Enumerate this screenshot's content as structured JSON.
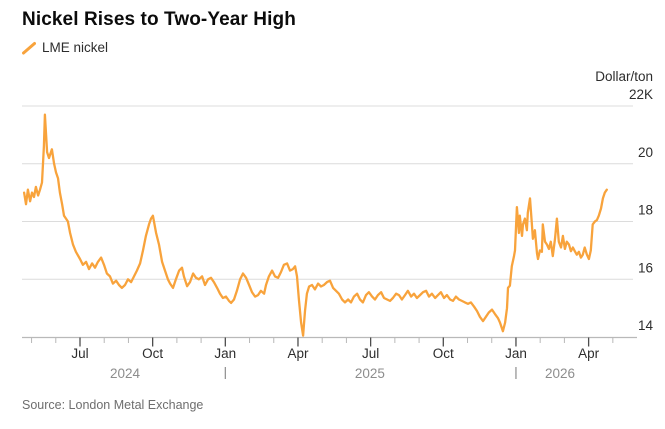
{
  "header": {
    "title": "Nickel Rises to Two-Year High"
  },
  "legend": {
    "label": "LME nickel",
    "color": "#F8A33C"
  },
  "footer": {
    "source": "Source: London Metal Exchange"
  },
  "colors": {
    "line": "#F8A33C",
    "gridline": "#dcdcdc",
    "axis_line": "#b9b9b9",
    "tick_major": "#4d4d4d",
    "tick_minor": "#b8b8b8",
    "axis_text": "#2d2d2d",
    "year_text": "#8d8d8d"
  },
  "chart_data": {
    "type": "line",
    "title": "Nickel Rises to Two-Year High",
    "series_name": "LME nickel",
    "unit_label": "Dollar/ton",
    "ylabel": "Dollar/ton",
    "xlabel": "",
    "grid": "horizontal",
    "legend_position": "top-left",
    "ylim": [
      13.95,
      22.3
    ],
    "x_months_since_2024_05": [
      -0.4,
      25.0
    ],
    "y_ticks": [
      {
        "label": "22K",
        "value": 22
      },
      {
        "label": "20",
        "value": 20
      },
      {
        "label": "18",
        "value": 18
      },
      {
        "label": "16",
        "value": 16
      },
      {
        "label": "14",
        "value": 14
      }
    ],
    "x_major_ticks": [
      {
        "label": "Jul",
        "t": 2
      },
      {
        "label": "Oct",
        "t": 5
      },
      {
        "label": "Jan",
        "t": 8
      },
      {
        "label": "Apr",
        "t": 11
      },
      {
        "label": "Jul",
        "t": 14
      },
      {
        "label": "Oct",
        "t": 17
      },
      {
        "label": "Jan",
        "t": 20
      },
      {
        "label": "Apr",
        "t": 23
      }
    ],
    "x_minor_ticks_t": [
      0,
      1,
      3,
      4,
      6,
      7,
      9,
      10,
      12,
      13,
      15,
      16,
      18,
      19,
      21,
      22,
      24
    ],
    "year_labels": [
      {
        "label": "2024",
        "t_center": 3.86
      },
      {
        "label": "2025",
        "t_center": 13.97
      },
      {
        "label": "2026",
        "t_center": 21.82
      }
    ],
    "year_dividers_t": [
      8,
      20
    ],
    "points": [
      [
        -0.31,
        19.0
      ],
      [
        -0.23,
        18.6
      ],
      [
        -0.15,
        19.1
      ],
      [
        -0.06,
        18.7
      ],
      [
        0.02,
        19.0
      ],
      [
        0.1,
        18.85
      ],
      [
        0.18,
        19.2
      ],
      [
        0.27,
        18.9
      ],
      [
        0.35,
        19.1
      ],
      [
        0.43,
        19.35
      ],
      [
        0.51,
        20.6
      ],
      [
        0.55,
        21.7
      ],
      [
        0.6,
        21.0
      ],
      [
        0.64,
        20.4
      ],
      [
        0.72,
        20.2
      ],
      [
        0.84,
        20.5
      ],
      [
        0.93,
        20.0
      ],
      [
        1.01,
        19.7
      ],
      [
        1.09,
        19.5
      ],
      [
        1.17,
        19.0
      ],
      [
        1.26,
        18.6
      ],
      [
        1.34,
        18.2
      ],
      [
        1.42,
        18.1
      ],
      [
        1.5,
        18.0
      ],
      [
        1.59,
        17.6
      ],
      [
        1.71,
        17.2
      ],
      [
        1.83,
        16.95
      ],
      [
        2.0,
        16.7
      ],
      [
        2.12,
        16.5
      ],
      [
        2.25,
        16.6
      ],
      [
        2.37,
        16.35
      ],
      [
        2.5,
        16.55
      ],
      [
        2.62,
        16.4
      ],
      [
        2.74,
        16.6
      ],
      [
        2.87,
        16.75
      ],
      [
        2.99,
        16.5
      ],
      [
        3.11,
        16.2
      ],
      [
        3.24,
        16.1
      ],
      [
        3.36,
        15.85
      ],
      [
        3.49,
        15.95
      ],
      [
        3.61,
        15.8
      ],
      [
        3.73,
        15.7
      ],
      [
        3.86,
        15.8
      ],
      [
        3.98,
        16.0
      ],
      [
        4.11,
        15.9
      ],
      [
        4.23,
        16.1
      ],
      [
        4.35,
        16.3
      ],
      [
        4.48,
        16.55
      ],
      [
        4.6,
        17.0
      ],
      [
        4.72,
        17.5
      ],
      [
        4.85,
        17.9
      ],
      [
        4.93,
        18.1
      ],
      [
        5.01,
        18.2
      ],
      [
        5.14,
        17.6
      ],
      [
        5.26,
        17.2
      ],
      [
        5.39,
        16.6
      ],
      [
        5.51,
        16.3
      ],
      [
        5.63,
        16.0
      ],
      [
        5.72,
        15.85
      ],
      [
        5.84,
        15.7
      ],
      [
        5.96,
        16.0
      ],
      [
        6.09,
        16.3
      ],
      [
        6.21,
        16.4
      ],
      [
        6.29,
        16.1
      ],
      [
        6.42,
        15.76
      ],
      [
        6.54,
        15.9
      ],
      [
        6.67,
        16.2
      ],
      [
        6.79,
        16.05
      ],
      [
        6.91,
        16.0
      ],
      [
        7.04,
        16.1
      ],
      [
        7.16,
        15.8
      ],
      [
        7.29,
        16.0
      ],
      [
        7.41,
        16.05
      ],
      [
        7.53,
        15.9
      ],
      [
        7.66,
        15.7
      ],
      [
        7.78,
        15.5
      ],
      [
        7.9,
        15.35
      ],
      [
        8.03,
        15.4
      ],
      [
        8.15,
        15.25
      ],
      [
        8.24,
        15.18
      ],
      [
        8.36,
        15.3
      ],
      [
        8.48,
        15.6
      ],
      [
        8.61,
        16.0
      ],
      [
        8.73,
        16.2
      ],
      [
        8.86,
        16.05
      ],
      [
        8.98,
        15.8
      ],
      [
        9.1,
        15.55
      ],
      [
        9.23,
        15.4
      ],
      [
        9.35,
        15.45
      ],
      [
        9.47,
        15.6
      ],
      [
        9.6,
        15.5
      ],
      [
        9.68,
        15.8
      ],
      [
        9.8,
        16.1
      ],
      [
        9.93,
        16.3
      ],
      [
        10.05,
        16.1
      ],
      [
        10.18,
        16.05
      ],
      [
        10.3,
        16.25
      ],
      [
        10.42,
        16.5
      ],
      [
        10.55,
        16.55
      ],
      [
        10.67,
        16.3
      ],
      [
        10.79,
        16.35
      ],
      [
        10.88,
        16.45
      ],
      [
        10.96,
        16.1
      ],
      [
        11.04,
        15.3
      ],
      [
        11.13,
        14.5
      ],
      [
        11.21,
        14.05
      ],
      [
        11.29,
        14.9
      ],
      [
        11.37,
        15.5
      ],
      [
        11.46,
        15.75
      ],
      [
        11.58,
        15.8
      ],
      [
        11.7,
        15.65
      ],
      [
        11.83,
        15.85
      ],
      [
        11.95,
        15.75
      ],
      [
        12.07,
        15.8
      ],
      [
        12.2,
        15.9
      ],
      [
        12.32,
        15.95
      ],
      [
        12.45,
        15.7
      ],
      [
        12.57,
        15.6
      ],
      [
        12.69,
        15.5
      ],
      [
        12.82,
        15.3
      ],
      [
        12.94,
        15.2
      ],
      [
        13.07,
        15.3
      ],
      [
        13.19,
        15.2
      ],
      [
        13.31,
        15.4
      ],
      [
        13.44,
        15.5
      ],
      [
        13.56,
        15.3
      ],
      [
        13.68,
        15.2
      ],
      [
        13.81,
        15.45
      ],
      [
        13.93,
        15.55
      ],
      [
        14.06,
        15.4
      ],
      [
        14.18,
        15.3
      ],
      [
        14.3,
        15.45
      ],
      [
        14.43,
        15.55
      ],
      [
        14.55,
        15.35
      ],
      [
        14.68,
        15.3
      ],
      [
        14.8,
        15.25
      ],
      [
        14.92,
        15.35
      ],
      [
        15.05,
        15.5
      ],
      [
        15.17,
        15.45
      ],
      [
        15.29,
        15.3
      ],
      [
        15.42,
        15.45
      ],
      [
        15.54,
        15.6
      ],
      [
        15.67,
        15.4
      ],
      [
        15.79,
        15.5
      ],
      [
        15.91,
        15.35
      ],
      [
        16.04,
        15.45
      ],
      [
        16.16,
        15.55
      ],
      [
        16.29,
        15.6
      ],
      [
        16.41,
        15.4
      ],
      [
        16.53,
        15.5
      ],
      [
        16.66,
        15.35
      ],
      [
        16.78,
        15.45
      ],
      [
        16.9,
        15.55
      ],
      [
        17.03,
        15.35
      ],
      [
        17.15,
        15.45
      ],
      [
        17.28,
        15.3
      ],
      [
        17.4,
        15.25
      ],
      [
        17.52,
        15.4
      ],
      [
        17.65,
        15.3
      ],
      [
        17.77,
        15.25
      ],
      [
        17.89,
        15.2
      ],
      [
        18.02,
        15.15
      ],
      [
        18.14,
        15.2
      ],
      [
        18.27,
        15.05
      ],
      [
        18.39,
        14.9
      ],
      [
        18.51,
        14.7
      ],
      [
        18.64,
        14.55
      ],
      [
        18.76,
        14.7
      ],
      [
        18.88,
        14.85
      ],
      [
        19.01,
        14.95
      ],
      [
        19.13,
        14.8
      ],
      [
        19.26,
        14.65
      ],
      [
        19.34,
        14.5
      ],
      [
        19.42,
        14.3
      ],
      [
        19.46,
        14.2
      ],
      [
        19.55,
        14.5
      ],
      [
        19.63,
        15.0
      ],
      [
        19.67,
        15.7
      ],
      [
        19.75,
        15.78
      ],
      [
        19.83,
        16.45
      ],
      [
        19.92,
        16.8
      ],
      [
        19.96,
        17.0
      ],
      [
        20.0,
        17.8
      ],
      [
        20.04,
        18.5
      ],
      [
        20.12,
        17.6
      ],
      [
        20.16,
        18.2
      ],
      [
        20.25,
        17.5
      ],
      [
        20.29,
        17.9
      ],
      [
        20.37,
        18.1
      ],
      [
        20.45,
        17.7
      ],
      [
        20.49,
        18.3
      ],
      [
        20.58,
        18.8
      ],
      [
        20.66,
        17.9
      ],
      [
        20.7,
        17.4
      ],
      [
        20.78,
        17.7
      ],
      [
        20.87,
        16.9
      ],
      [
        20.91,
        16.7
      ],
      [
        20.99,
        17.0
      ],
      [
        21.07,
        16.95
      ],
      [
        21.11,
        17.9
      ],
      [
        21.2,
        17.3
      ],
      [
        21.28,
        17.2
      ],
      [
        21.36,
        17.05
      ],
      [
        21.44,
        17.3
      ],
      [
        21.52,
        16.8
      ],
      [
        21.61,
        17.4
      ],
      [
        21.69,
        18.1
      ],
      [
        21.77,
        17.3
      ],
      [
        21.86,
        17.1
      ],
      [
        21.94,
        17.5
      ],
      [
        22.02,
        17.05
      ],
      [
        22.1,
        17.3
      ],
      [
        22.19,
        17.2
      ],
      [
        22.27,
        16.97
      ],
      [
        22.35,
        17.1
      ],
      [
        22.43,
        16.97
      ],
      [
        22.51,
        16.85
      ],
      [
        22.6,
        16.95
      ],
      [
        22.68,
        16.75
      ],
      [
        22.76,
        16.85
      ],
      [
        22.84,
        17.1
      ],
      [
        22.93,
        16.85
      ],
      [
        23.01,
        16.7
      ],
      [
        23.09,
        17.0
      ],
      [
        23.17,
        17.9
      ],
      [
        23.26,
        18.0
      ],
      [
        23.34,
        18.05
      ],
      [
        23.42,
        18.2
      ],
      [
        23.51,
        18.45
      ],
      [
        23.59,
        18.8
      ],
      [
        23.67,
        19.0
      ],
      [
        23.75,
        19.1
      ]
    ]
  }
}
